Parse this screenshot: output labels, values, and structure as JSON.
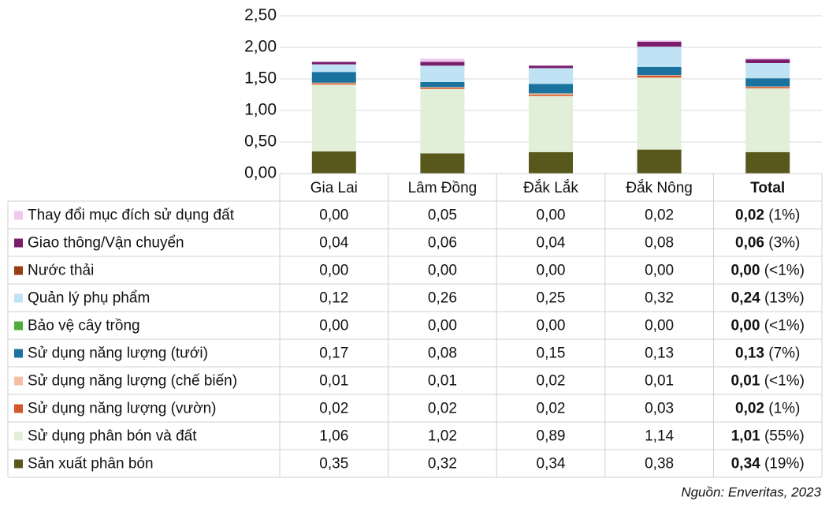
{
  "chart_data": {
    "type": "bar",
    "stacked": true,
    "categories": [
      "Gia Lai",
      "Lâm Đồng",
      "Đắk Lắk",
      "Đắk Nông",
      "Total"
    ],
    "ylim": [
      0,
      2.5
    ],
    "yticks": [
      {
        "value": 0,
        "label": "0,00"
      },
      {
        "value": 0.5,
        "label": "0,50"
      },
      {
        "value": 1,
        "label": "1,00"
      },
      {
        "value": 1.5,
        "label": "1,50"
      },
      {
        "value": 2,
        "label": "2,00"
      },
      {
        "value": 2.5,
        "label": "2,50"
      }
    ],
    "grid": true,
    "series": [
      {
        "name": "Thay đổi mục đích sử dụng đất",
        "color": "#efc8ef",
        "values": [
          0,
          0.05,
          0,
          0.02,
          0.02
        ],
        "value_labels": [
          "0,00",
          "0,05",
          "0,00",
          "0,02",
          "0,02"
        ],
        "share_label": "(1%)"
      },
      {
        "name": "Giao thông/Vận chuyển",
        "color": "#7a1e6c",
        "values": [
          0.04,
          0.06,
          0.04,
          0.08,
          0.06
        ],
        "value_labels": [
          "0,04",
          "0,06",
          "0,04",
          "0,08",
          "0,06"
        ],
        "share_label": "(3%)"
      },
      {
        "name": "Nước thải",
        "color": "#9a3c12",
        "values": [
          0,
          0,
          0,
          0,
          0
        ],
        "value_labels": [
          "0,00",
          "0,00",
          "0,00",
          "0,00",
          "0,00"
        ],
        "share_label": "(<1%)"
      },
      {
        "name": "Quản lý phụ phẩm",
        "color": "#bfe2f4",
        "values": [
          0.12,
          0.26,
          0.25,
          0.32,
          0.24
        ],
        "value_labels": [
          "0,12",
          "0,26",
          "0,25",
          "0,32",
          "0,24"
        ],
        "share_label": "(13%)"
      },
      {
        "name": "Bảo vệ cây trồng",
        "color": "#4dae3b",
        "values": [
          0,
          0,
          0,
          0,
          0
        ],
        "value_labels": [
          "0,00",
          "0,00",
          "0,00",
          "0,00",
          "0,00"
        ],
        "share_label": "(<1%)"
      },
      {
        "name": "Sử dụng năng lượng (tưới)",
        "color": "#1a729e",
        "values": [
          0.17,
          0.08,
          0.15,
          0.13,
          0.13
        ],
        "value_labels": [
          "0,17",
          "0,08",
          "0,15",
          "0,13",
          "0,13"
        ],
        "share_label": "(7%)"
      },
      {
        "name": "Sử dụng năng lượng (chế biến)",
        "color": "#f5c0a6",
        "values": [
          0.01,
          0.01,
          0.02,
          0.01,
          0.01
        ],
        "value_labels": [
          "0,01",
          "0,01",
          "0,02",
          "0,01",
          "0,01"
        ],
        "share_label": "(<1%)"
      },
      {
        "name": "Sử dụng năng lượng (vườn)",
        "color": "#d2572a",
        "values": [
          0.02,
          0.02,
          0.02,
          0.03,
          0.02
        ],
        "value_labels": [
          "0,02",
          "0,02",
          "0,02",
          "0,03",
          "0,02"
        ],
        "share_label": "(1%)"
      },
      {
        "name": "Sử dụng phân bón và đất",
        "color": "#e2efd8",
        "values": [
          1.06,
          1.02,
          0.89,
          1.14,
          1.01
        ],
        "value_labels": [
          "1,06",
          "1,02",
          "0,89",
          "1,14",
          "1,01"
        ],
        "share_label": "(55%)"
      },
      {
        "name": "Sản xuất phân bón",
        "color": "#58581d",
        "values": [
          0.35,
          0.32,
          0.34,
          0.38,
          0.34
        ],
        "value_labels": [
          "0,35",
          "0,32",
          "0,34",
          "0,38",
          "0,34"
        ],
        "share_label": "(19%)"
      }
    ],
    "source": "Nguồn: Enveritas, 2023"
  }
}
